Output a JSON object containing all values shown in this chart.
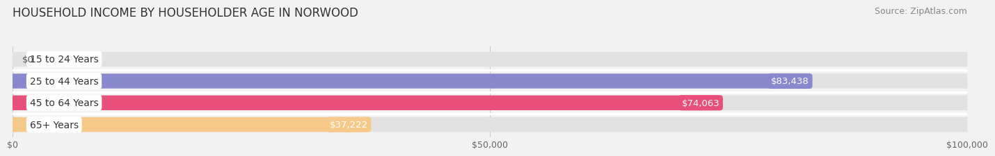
{
  "title": "HOUSEHOLD INCOME BY HOUSEHOLDER AGE IN NORWOOD",
  "source": "Source: ZipAtlas.com",
  "categories": [
    "15 to 24 Years",
    "25 to 44 Years",
    "45 to 64 Years",
    "65+ Years"
  ],
  "values": [
    0,
    83438,
    74063,
    37222
  ],
  "bar_colors": [
    "#7dd8d8",
    "#8888cc",
    "#e8507a",
    "#f5c98a"
  ],
  "value_labels": [
    "$0",
    "$83,438",
    "$74,063",
    "$37,222"
  ],
  "xlim": [
    0,
    100000
  ],
  "xticks": [
    0,
    50000,
    100000
  ],
  "xticklabels": [
    "$0",
    "$50,000",
    "$100,000"
  ],
  "background_color": "#f2f2f2",
  "bar_background_color": "#e2e2e2",
  "bar_sep_color": "#ffffff",
  "title_fontsize": 12,
  "source_fontsize": 9,
  "label_fontsize": 10,
  "value_fontsize": 9.5
}
